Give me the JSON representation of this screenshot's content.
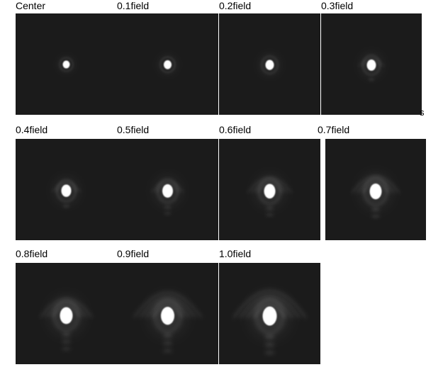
{
  "panels": [
    {
      "label": "Center",
      "field": 0.0
    },
    {
      "label": "0.1field",
      "field": 0.1
    },
    {
      "label": "0.2field",
      "field": 0.2
    },
    {
      "label": "0.3field",
      "field": 0.3
    },
    {
      "label": "0.4field",
      "field": 0.4
    },
    {
      "label": "0.5field",
      "field": 0.5
    },
    {
      "label": "0.6field",
      "field": 0.6
    },
    {
      "label": "0.7field",
      "field": 0.7
    },
    {
      "label": "0.8field",
      "field": 0.8
    },
    {
      "label": "0.9field",
      "field": 0.9
    },
    {
      "label": "1.0field",
      "field": 1.0
    }
  ],
  "stray_text": "s",
  "colors": {
    "frame_background": "#1b1b1b",
    "spot": "#ffffff"
  }
}
